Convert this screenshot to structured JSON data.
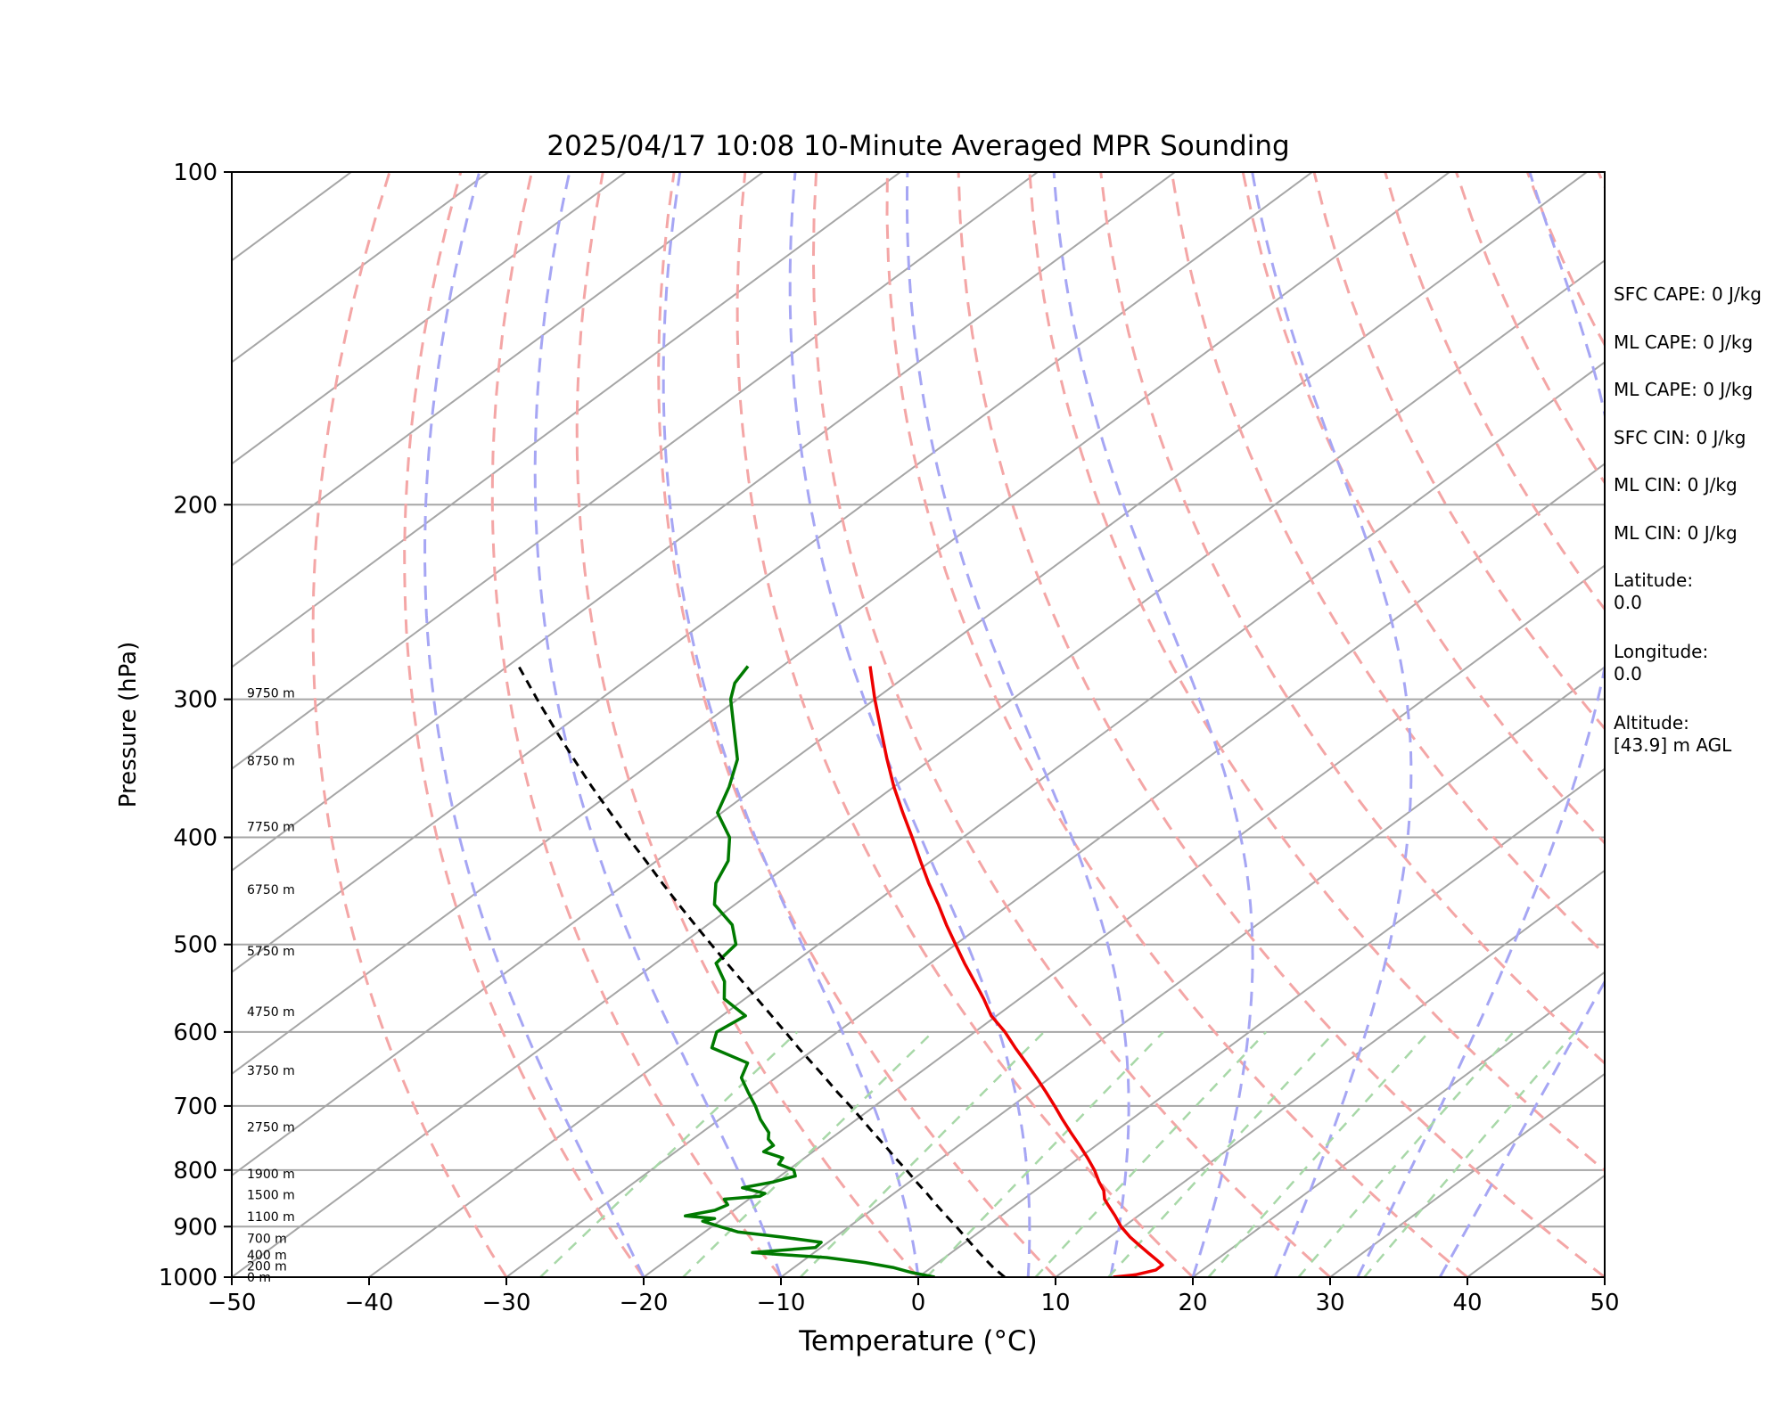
{
  "chart_data": {
    "type": "skew-t",
    "title": "2025/04/17 10:08 10-Minute Averaged MPR Sounding",
    "xlabel": "Temperature (°C)",
    "ylabel": "Pressure (hPa)",
    "xlim": [
      -50,
      50
    ],
    "ylim": [
      1000,
      100
    ],
    "y_scale": "log",
    "grid": true,
    "x_ticks": [
      "−50",
      "−40",
      "−30",
      "−20",
      "−10",
      "0",
      "10",
      "20",
      "30",
      "40",
      "50"
    ],
    "x_tick_values": [
      -50,
      -40,
      -30,
      -20,
      -10,
      0,
      10,
      20,
      30,
      40,
      50
    ],
    "y_ticks": [
      "1000",
      "900",
      "800",
      "700",
      "600",
      "500",
      "400",
      "300",
      "200",
      "100"
    ],
    "y_tick_values": [
      1000,
      900,
      800,
      700,
      600,
      500,
      400,
      300,
      200,
      100
    ],
    "colors": {
      "temperature": "#ee0000",
      "dewpoint": "#007a00",
      "parcel": "#000000",
      "isotherm": "#a6a6a6",
      "dry_adiabat": "#f4a6a6",
      "moist_adiabat": "#a6a6f4",
      "mixing_ratio": "#a8d8a8"
    },
    "height_labels": [
      {
        "text": "0 m",
        "p": 1000
      },
      {
        "text": "200 m",
        "p": 977
      },
      {
        "text": "400 m",
        "p": 955
      },
      {
        "text": "700 m",
        "p": 922
      },
      {
        "text": "1100 m",
        "p": 881
      },
      {
        "text": "1500 m",
        "p": 842
      },
      {
        "text": "1900 m",
        "p": 806
      },
      {
        "text": "2750 m",
        "p": 731
      },
      {
        "text": "3750 m",
        "p": 650
      },
      {
        "text": "4750 m",
        "p": 575
      },
      {
        "text": "5750 m",
        "p": 507
      },
      {
        "text": "6750 m",
        "p": 446
      },
      {
        "text": "7750 m",
        "p": 391
      },
      {
        "text": "8750 m",
        "p": 341
      },
      {
        "text": "9750 m",
        "p": 296
      }
    ],
    "series": [
      {
        "key": "temperature",
        "p": [
          1000,
          995,
          985,
          975,
          965,
          950,
          935,
          920,
          900,
          880,
          860,
          850,
          835,
          820,
          800,
          780,
          760,
          740,
          720,
          700,
          680,
          660,
          640,
          620,
          600,
          580,
          560,
          540,
          520,
          500,
          480,
          460,
          440,
          420,
          400,
          380,
          360,
          340,
          320,
          300,
          280
        ],
        "t": [
          14.2,
          15.6,
          16.6,
          16.6,
          15.7,
          14.3,
          12.9,
          11.5,
          9.8,
          8.3,
          6.7,
          5.9,
          5.0,
          3.8,
          2.3,
          0.6,
          -1.2,
          -3.1,
          -5.0,
          -6.9,
          -8.9,
          -11.0,
          -13.2,
          -15.5,
          -17.8,
          -20.4,
          -22.6,
          -25.0,
          -27.5,
          -30.0,
          -32.6,
          -35.2,
          -38.0,
          -40.8,
          -43.7,
          -46.8,
          -50.0,
          -53.2,
          -56.5,
          -60.0,
          -63.6
        ]
      },
      {
        "key": "dewpoint",
        "p": [
          1000,
          990,
          980,
          970,
          960,
          955,
          950,
          940,
          930,
          920,
          910,
          900,
          890,
          885,
          880,
          870,
          860,
          850,
          845,
          840,
          830,
          820,
          810,
          800,
          790,
          780,
          770,
          760,
          750,
          740,
          720,
          700,
          680,
          660,
          640,
          620,
          600,
          580,
          560,
          540,
          520,
          500,
          480,
          460,
          440,
          420,
          400,
          380,
          360,
          340,
          320,
          300,
          290,
          280
        ],
        "t": [
          1.2,
          -1.0,
          -2.8,
          -5.3,
          -8.6,
          -11.6,
          -14.5,
          -10.4,
          -10.5,
          -13.8,
          -17.6,
          -19.4,
          -21.2,
          -20.6,
          -23.0,
          -21.4,
          -21.0,
          -21.8,
          -19.5,
          -19.4,
          -21.6,
          -19.9,
          -18.9,
          -19.6,
          -21.3,
          -21.6,
          -23.6,
          -23.5,
          -24.5,
          -25.1,
          -27.0,
          -28.7,
          -30.6,
          -32.5,
          -33.5,
          -37.6,
          -38.8,
          -38.3,
          -41.5,
          -43.2,
          -45.6,
          -46.0,
          -48.2,
          -51.5,
          -53.5,
          -54.8,
          -57.0,
          -60.3,
          -62.0,
          -64.1,
          -67.2,
          -70.5,
          -71.8,
          -72.5
        ]
      },
      {
        "key": "parcel",
        "p": [
          1000,
          980,
          950,
          920,
          900,
          880,
          860,
          840,
          820,
          800,
          780,
          760,
          740,
          720,
          700,
          680,
          660,
          640,
          620,
          600,
          580,
          560,
          540,
          520,
          500,
          480,
          460,
          440,
          420,
          400,
          380,
          360,
          340,
          320,
          300,
          280
        ],
        "t": [
          6.3,
          4.5,
          2.0,
          -0.5,
          -2.2,
          -4.0,
          -5.8,
          -7.6,
          -9.5,
          -11.4,
          -13.4,
          -15.4,
          -17.5,
          -19.6,
          -21.8,
          -24.1,
          -26.4,
          -28.8,
          -31.3,
          -33.8,
          -36.4,
          -39.1,
          -41.9,
          -44.8,
          -47.8,
          -50.9,
          -54.1,
          -57.4,
          -60.8,
          -64.4,
          -68.1,
          -72.0,
          -76.0,
          -80.2,
          -84.6,
          -89.2
        ]
      }
    ]
  },
  "panel": {
    "sfc_cape": "SFC CAPE: 0 J/kg",
    "ml_cape_1": "ML CAPE: 0 J/kg",
    "ml_cape_2": "ML CAPE: 0 J/kg",
    "sfc_cin": "SFC CIN: 0 J/kg",
    "ml_cin_1": "ML CIN: 0 J/kg",
    "ml_cin_2": "ML CIN: 0 J/kg",
    "latitude_label": "Latitude:",
    "latitude_value": "0.0",
    "longitude_label": "Longitude:",
    "longitude_value": "0.0",
    "altitude_label": "Altitude:",
    "altitude_value": "[43.9] m AGL"
  }
}
